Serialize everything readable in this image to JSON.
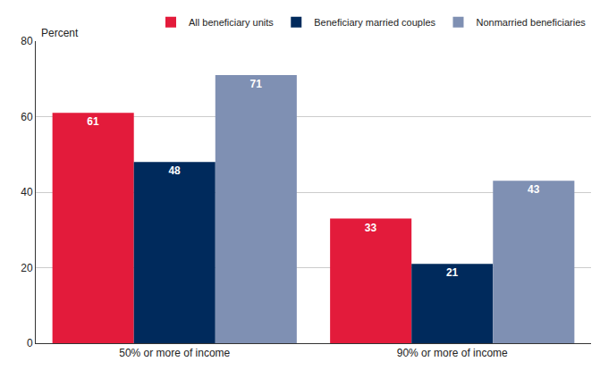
{
  "chart_data": {
    "type": "bar",
    "y_label": "Percent",
    "categories": [
      "50% or more of income",
      "90% or more of income"
    ],
    "series": [
      {
        "name": "All beneficiary units",
        "color": "#e31b3b",
        "values": [
          61,
          33
        ]
      },
      {
        "name": "Beneficiary married couples",
        "color": "#002a5c",
        "values": [
          48,
          21
        ]
      },
      {
        "name": "Nonmarried beneficiaries",
        "color": "#7f90b3",
        "values": [
          71,
          43
        ]
      }
    ],
    "ylim": [
      0,
      80
    ],
    "yticks": [
      0,
      20,
      40,
      60,
      80
    ],
    "grid": true,
    "legend": "top right",
    "data_labels": true
  }
}
